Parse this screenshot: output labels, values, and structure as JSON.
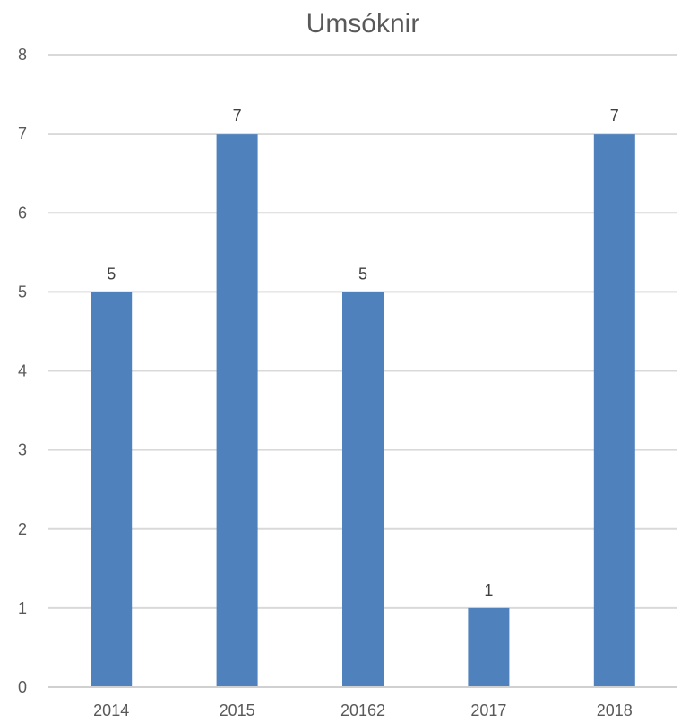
{
  "chart_data": {
    "type": "bar",
    "title": "Umsóknir",
    "categories": [
      "2014",
      "2015",
      "20162",
      "2017",
      "2018"
    ],
    "values": [
      5,
      7,
      5,
      1,
      7
    ],
    "ylim": [
      0,
      8
    ],
    "yticks": [
      0,
      1,
      2,
      3,
      4,
      5,
      6,
      7,
      8
    ],
    "grid": true,
    "data_labels": true,
    "bar_color": "#4f81bd",
    "legend": "none"
  }
}
